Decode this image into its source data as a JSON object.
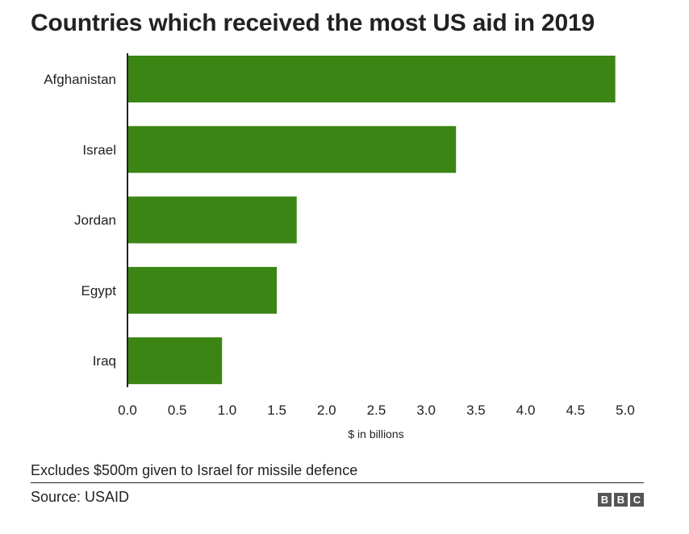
{
  "chart_data": {
    "type": "bar",
    "orientation": "horizontal",
    "title": "Countries which received the most US aid in 2019",
    "categories": [
      "Afghanistan",
      "Israel",
      "Jordan",
      "Egypt",
      "Iraq"
    ],
    "values": [
      4.9,
      3.3,
      1.7,
      1.5,
      0.95
    ],
    "xlabel": "$ in billions",
    "ylabel": "",
    "xlim": [
      0,
      5
    ],
    "xticks": [
      "0.0",
      "0.5",
      "1.0",
      "1.5",
      "2.0",
      "2.5",
      "3.0",
      "3.5",
      "4.0",
      "4.5",
      "5.0"
    ],
    "grid": false,
    "bar_color": "#3b8514"
  },
  "footnote": "Excludes $500m given to Israel for missile defence",
  "source": "Source: USAID",
  "logo": {
    "letters": [
      "B",
      "B",
      "C"
    ],
    "color": "#555555"
  }
}
